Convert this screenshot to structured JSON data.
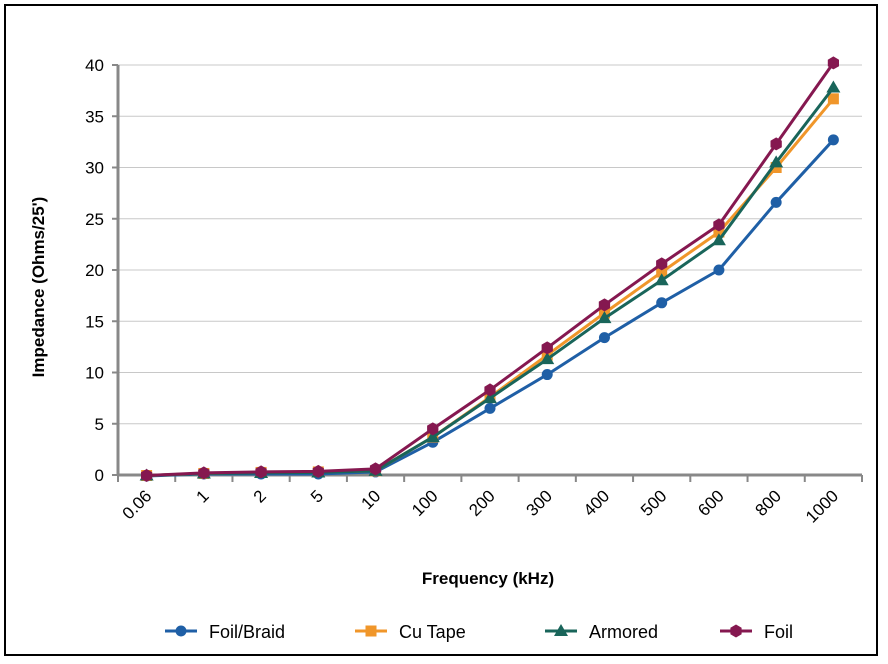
{
  "chart_data": {
    "type": "line",
    "title": "",
    "xlabel": "Frequency (kHz)",
    "ylabel": "Impedance (Ohms/25')",
    "categories": [
      "0.06",
      "1",
      "2",
      "5",
      "10",
      "100",
      "200",
      "300",
      "400",
      "500",
      "600",
      "800",
      "1000"
    ],
    "ylim": [
      0,
      40
    ],
    "yticks": [
      0,
      5,
      10,
      15,
      20,
      25,
      30,
      35,
      40
    ],
    "grid": "horizontal",
    "legend_position": "bottom",
    "series": [
      {
        "name": "Foil/Braid",
        "color": "#1f5fa6",
        "marker": "circle",
        "values": [
          -0.1,
          0.1,
          0.1,
          0.1,
          0.3,
          3.2,
          6.5,
          9.8,
          13.4,
          16.8,
          20.0,
          26.6,
          32.7
        ]
      },
      {
        "name": "Cu Tape",
        "color": "#f0962a",
        "marker": "square",
        "values": [
          -0.05,
          0.15,
          0.25,
          0.3,
          0.4,
          3.7,
          7.6,
          11.7,
          15.8,
          19.8,
          23.7,
          30.0,
          36.7
        ]
      },
      {
        "name": "Armored",
        "color": "#19655a",
        "marker": "triangle",
        "values": [
          -0.05,
          0.15,
          0.2,
          0.25,
          0.4,
          3.7,
          7.5,
          11.3,
          15.3,
          19.0,
          22.9,
          30.5,
          37.8
        ]
      },
      {
        "name": "Foil",
        "color": "#851850",
        "marker": "hexagon",
        "values": [
          -0.05,
          0.2,
          0.3,
          0.35,
          0.6,
          4.5,
          8.3,
          12.4,
          16.6,
          20.6,
          24.4,
          32.3,
          40.2
        ]
      }
    ]
  }
}
